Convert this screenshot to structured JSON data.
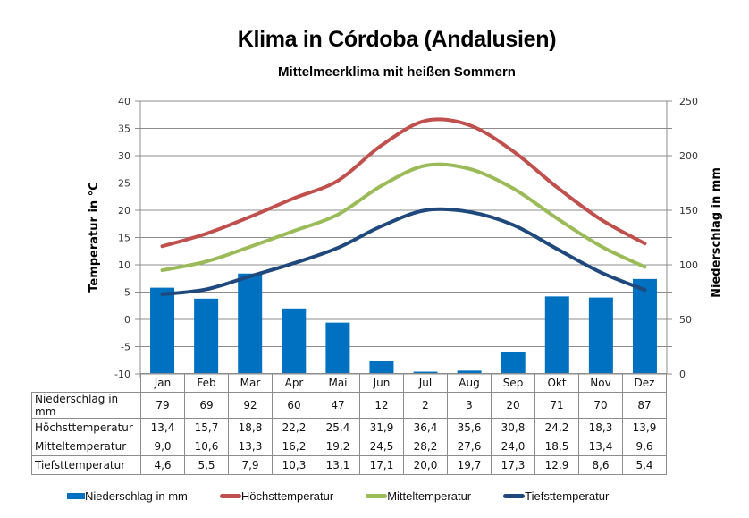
{
  "title": "Klima in Córdoba (Andalusien)",
  "subtitle": "Mittelmeerklima mit heißen Sommern",
  "chart_data": {
    "type": "bar+line",
    "title": "Klima in Córdoba (Andalusien)",
    "subtitle": "Mittelmeerklima mit heißen Sommern",
    "categories": [
      "Jan",
      "Feb",
      "Mar",
      "Apr",
      "Mai",
      "Jun",
      "Jul",
      "Aug",
      "Sep",
      "Okt",
      "Nov",
      "Dez"
    ],
    "ylabel_left": "Temperatur in °C",
    "ylabel_right": "Niederschlag in mm",
    "ylim_left": [
      -10,
      40
    ],
    "yticks_left": [
      -10,
      -5,
      0,
      5,
      10,
      15,
      20,
      25,
      30,
      35,
      40
    ],
    "ylim_right": [
      0,
      250
    ],
    "yticks_right": [
      0,
      50,
      100,
      150,
      200,
      250
    ],
    "grid": true,
    "legend_position": "bottom",
    "series": [
      {
        "name": "Niederschlag in mm",
        "type": "bar",
        "axis": "right",
        "color": "#0070c0",
        "values": [
          79,
          69,
          92,
          60,
          47,
          12,
          2,
          3,
          20,
          71,
          70,
          87
        ],
        "display": [
          "79",
          "69",
          "92",
          "60",
          "47",
          "12",
          "2",
          "3",
          "20",
          "71",
          "70",
          "87"
        ]
      },
      {
        "name": "Höchsttemperatur",
        "type": "line",
        "axis": "left",
        "color": "#c0504d",
        "values": [
          13.4,
          15.7,
          18.8,
          22.2,
          25.4,
          31.9,
          36.4,
          35.6,
          30.8,
          24.2,
          18.3,
          13.9
        ],
        "display": [
          "13,4",
          "15,7",
          "18,8",
          "22,2",
          "25,4",
          "31,9",
          "36,4",
          "35,6",
          "30,8",
          "24,2",
          "18,3",
          "13,9"
        ]
      },
      {
        "name": "Mitteltemperatur",
        "type": "line",
        "axis": "left",
        "color": "#9bbb59",
        "values": [
          9.0,
          10.6,
          13.3,
          16.2,
          19.2,
          24.5,
          28.2,
          27.6,
          24.0,
          18.5,
          13.4,
          9.6
        ],
        "display": [
          "9,0",
          "10,6",
          "13,3",
          "16,2",
          "19,2",
          "24,5",
          "28,2",
          "27,6",
          "24,0",
          "18,5",
          "13,4",
          "9,6"
        ]
      },
      {
        "name": "Tiefsttemperatur",
        "type": "line",
        "axis": "left",
        "color": "#1f497d",
        "values": [
          4.6,
          5.5,
          7.9,
          10.3,
          13.1,
          17.1,
          20.0,
          19.7,
          17.3,
          12.9,
          8.6,
          5.4
        ],
        "display": [
          "4,6",
          "5,5",
          "7,9",
          "10,3",
          "13,1",
          "17,1",
          "20,0",
          "19,7",
          "17,3",
          "12,9",
          "8,6",
          "5,4"
        ]
      }
    ]
  }
}
